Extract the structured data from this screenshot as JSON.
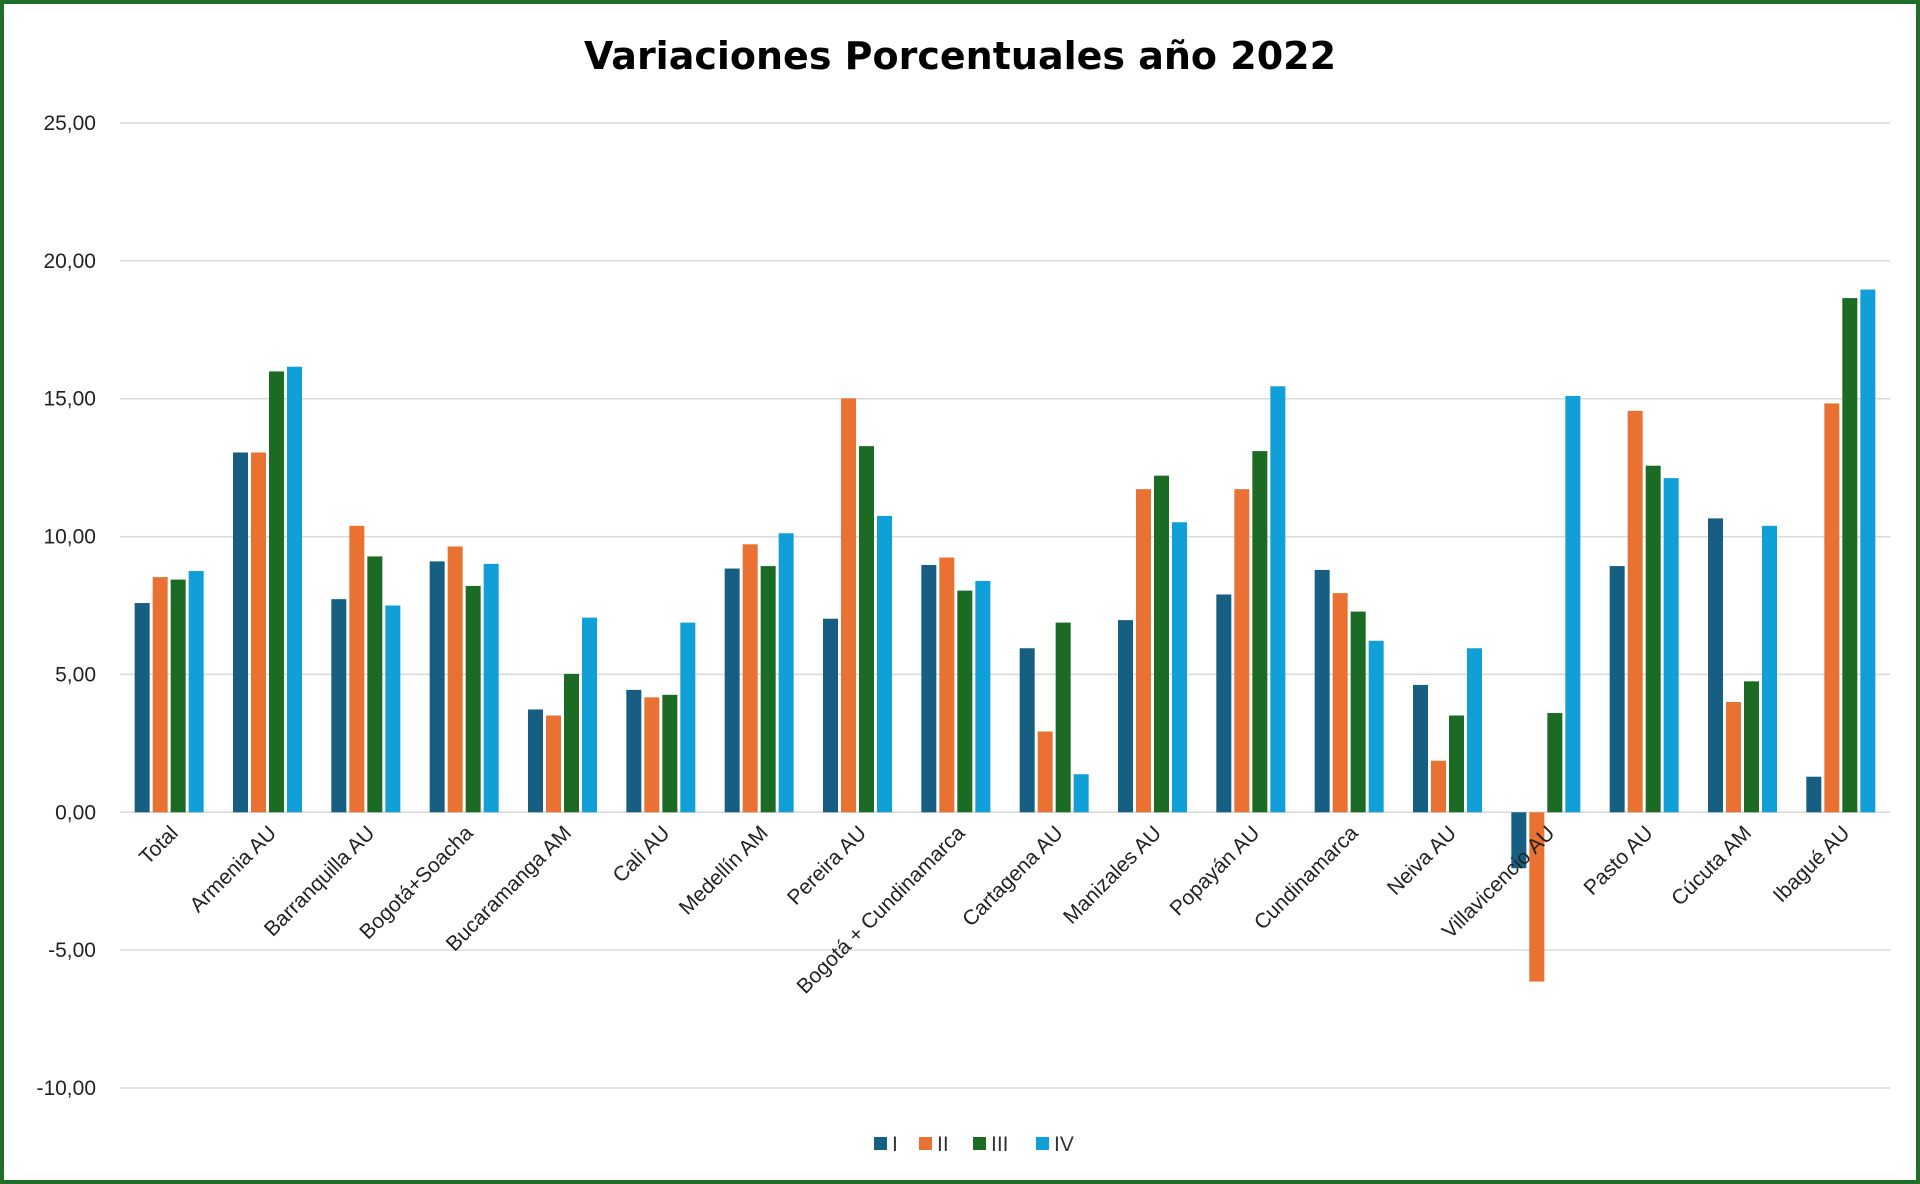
{
  "chart_data": {
    "type": "bar",
    "title": "Variaciones Porcentuales año 2022",
    "xlabel": "",
    "ylabel": "",
    "ylim": [
      -10,
      25
    ],
    "yticks": [
      "25,00",
      "20,00",
      "15,00",
      "10,00",
      "5,00",
      "0,00",
      "-5,00",
      "-10,00"
    ],
    "grid": true,
    "legend_position": "bottom",
    "categories": [
      "Total",
      "Armenia AU",
      "Barranquilla AU",
      "Bogotá+Soacha",
      "Bucaramanga AM",
      "Cali AU",
      "Medellín AM",
      "Pereira AU",
      "Bogotá + Cundinamarca",
      "Cartagena AU",
      "Manizales AU",
      "Popayán AU",
      "Cundinamarca",
      "Neiva AU",
      "Villavicencio AU",
      "Pasto AU",
      "Cúcuta AM",
      "Ibagué AU"
    ],
    "series": [
      {
        "name": "I",
        "color": "#175f82",
        "values": [
          7.59,
          13.05,
          7.73,
          9.1,
          3.73,
          4.44,
          8.84,
          7.02,
          8.97,
          5.95,
          6.97,
          7.9,
          8.79,
          4.62,
          -2.03,
          8.93,
          10.66,
          1.29
        ]
      },
      {
        "name": "II",
        "color": "#e97132",
        "values": [
          8.53,
          13.05,
          10.39,
          9.64,
          3.51,
          4.17,
          9.72,
          15.01,
          9.24,
          2.93,
          11.72,
          11.72,
          7.95,
          1.87,
          -6.14,
          14.56,
          4.0,
          14.83
        ]
      },
      {
        "name": "III",
        "color": "#1c6b24",
        "values": [
          8.44,
          15.99,
          9.28,
          8.21,
          5.02,
          4.26,
          8.93,
          13.28,
          8.04,
          6.88,
          12.21,
          13.1,
          7.28,
          3.51,
          3.6,
          12.57,
          4.75,
          18.65
        ]
      },
      {
        "name": "IV",
        "color": "#109fd6",
        "values": [
          8.75,
          16.16,
          7.5,
          9.01,
          7.06,
          6.88,
          10.12,
          10.75,
          8.39,
          1.38,
          10.52,
          15.45,
          6.22,
          5.95,
          15.1,
          12.12,
          10.39,
          18.96
        ]
      }
    ]
  }
}
